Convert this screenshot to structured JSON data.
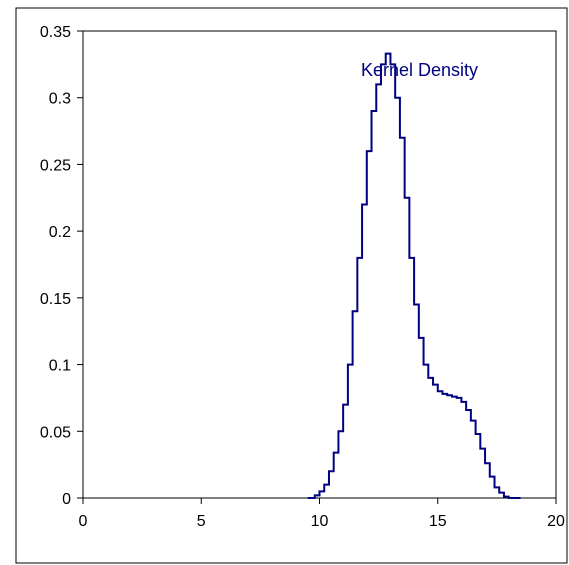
{
  "chart_data": {
    "type": "line",
    "title": "",
    "xlabel": "",
    "ylabel": "",
    "xlim": [
      0,
      20
    ],
    "ylim": [
      0,
      0.35
    ],
    "x_ticks": [
      0,
      5,
      10,
      15,
      20
    ],
    "y_ticks": [
      0,
      0.05,
      0.1,
      0.15,
      0.2,
      0.25,
      0.3,
      0.35
    ],
    "x_tick_labels": [
      "0",
      "5",
      "10",
      "15",
      "20"
    ],
    "y_tick_labels": [
      "0",
      "0.05",
      "0.1",
      "0.15",
      "0.2",
      "0.25",
      "0.3",
      "0.35"
    ],
    "grid": false,
    "legend": "none",
    "series": [
      {
        "name": "Kernel Density",
        "color": "#000080",
        "step": true,
        "points": [
          [
            9.5,
            0.0
          ],
          [
            9.8,
            0.002
          ],
          [
            10.0,
            0.005
          ],
          [
            10.2,
            0.01
          ],
          [
            10.4,
            0.02
          ],
          [
            10.6,
            0.034
          ],
          [
            10.8,
            0.05
          ],
          [
            11.0,
            0.07
          ],
          [
            11.2,
            0.1
          ],
          [
            11.4,
            0.14
          ],
          [
            11.6,
            0.18
          ],
          [
            11.8,
            0.22
          ],
          [
            12.0,
            0.26
          ],
          [
            12.2,
            0.29
          ],
          [
            12.4,
            0.31
          ],
          [
            12.6,
            0.325
          ],
          [
            12.8,
            0.333
          ],
          [
            13.0,
            0.325
          ],
          [
            13.2,
            0.3
          ],
          [
            13.4,
            0.27
          ],
          [
            13.6,
            0.225
          ],
          [
            13.8,
            0.18
          ],
          [
            14.0,
            0.145
          ],
          [
            14.2,
            0.12
          ],
          [
            14.4,
            0.1
          ],
          [
            14.6,
            0.09
          ],
          [
            14.8,
            0.085
          ],
          [
            15.0,
            0.08
          ],
          [
            15.2,
            0.078
          ],
          [
            15.4,
            0.077
          ],
          [
            15.6,
            0.076
          ],
          [
            15.8,
            0.075
          ],
          [
            16.0,
            0.072
          ],
          [
            16.2,
            0.066
          ],
          [
            16.4,
            0.058
          ],
          [
            16.6,
            0.048
          ],
          [
            16.8,
            0.037
          ],
          [
            17.0,
            0.026
          ],
          [
            17.2,
            0.016
          ],
          [
            17.4,
            0.008
          ],
          [
            17.6,
            0.004
          ],
          [
            17.8,
            0.001
          ],
          [
            18.0,
            0.0
          ],
          [
            18.5,
            0.0
          ]
        ]
      }
    ]
  }
}
